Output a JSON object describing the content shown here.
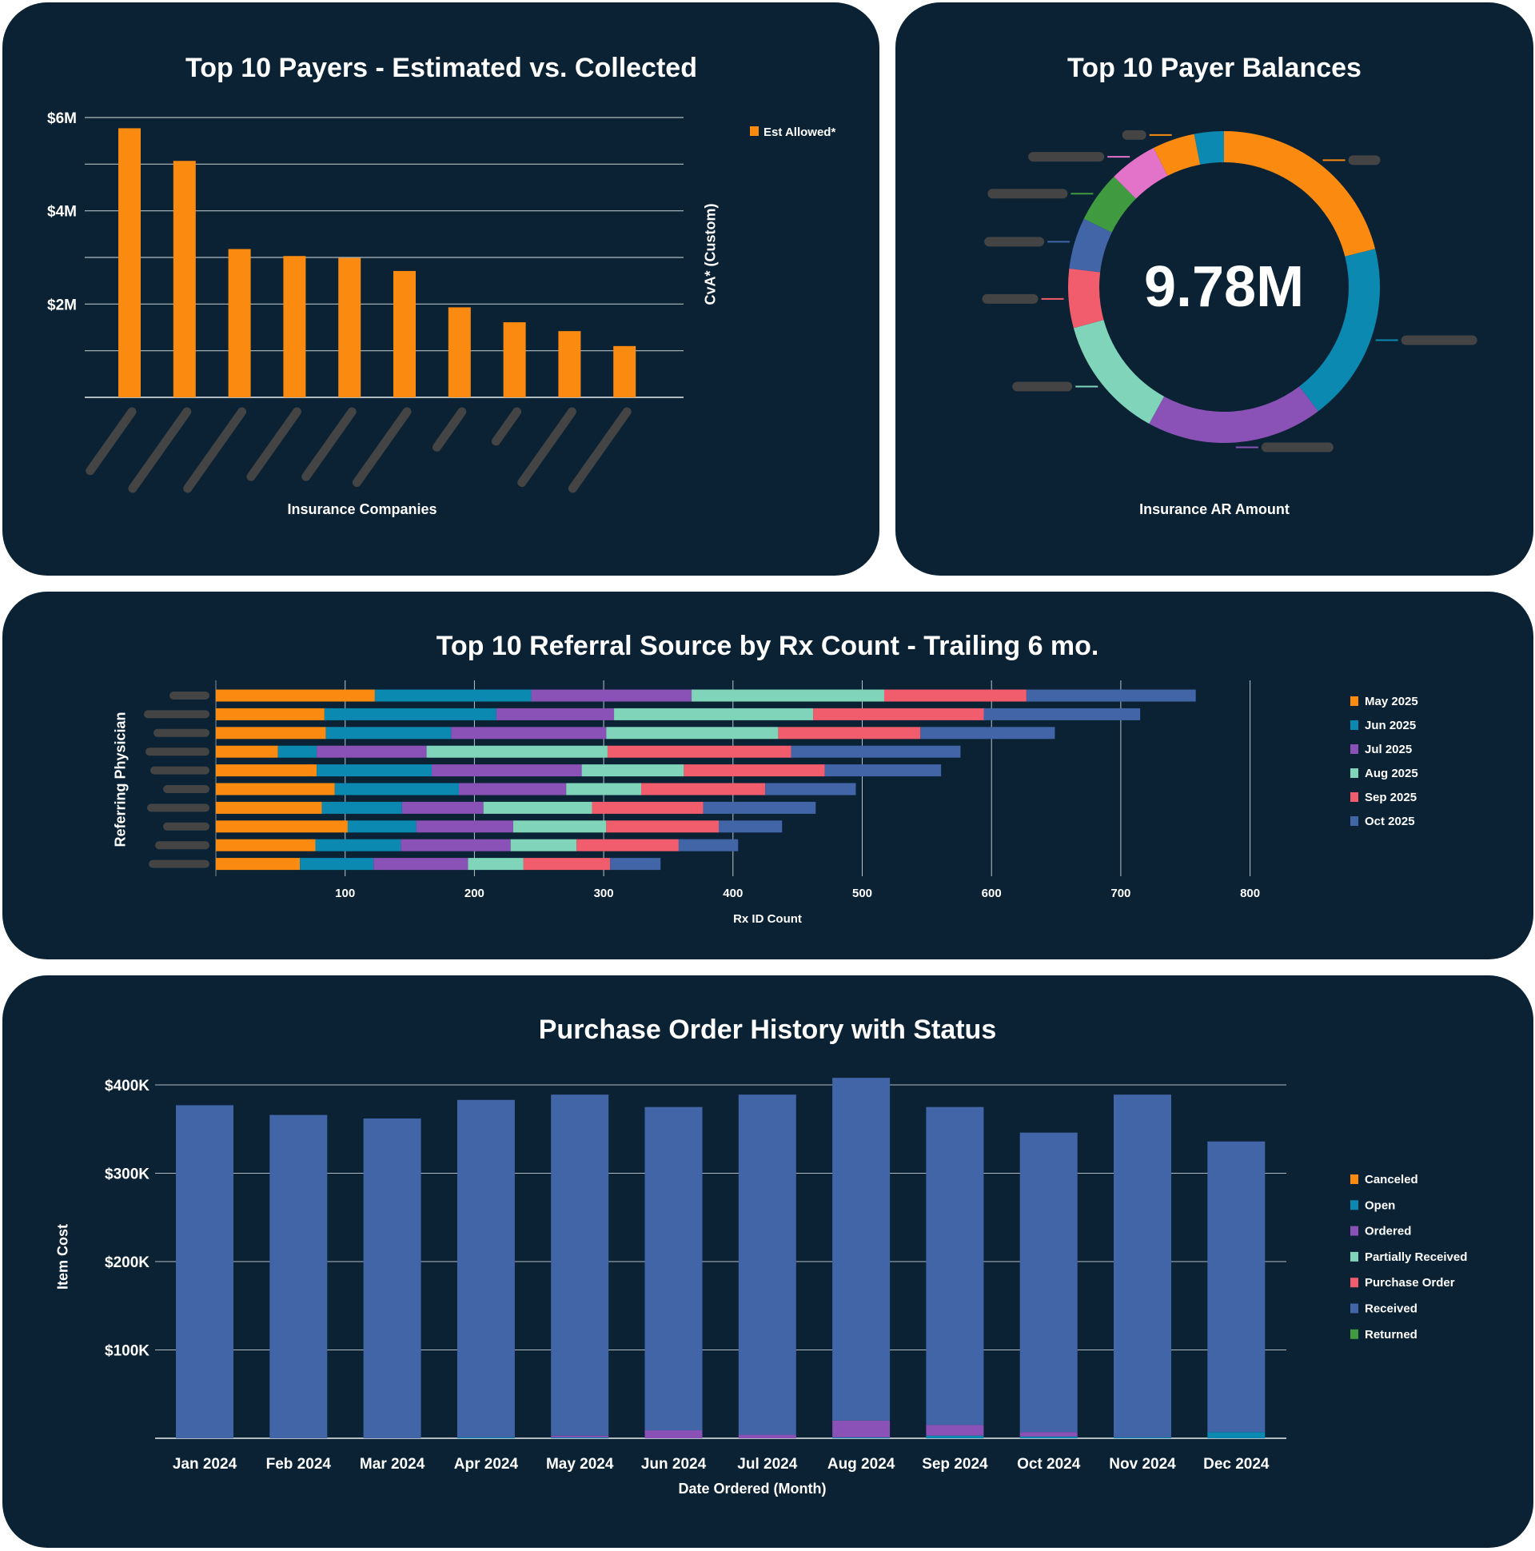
{
  "colors": {
    "card_bg": "#0a2233",
    "orange": "#fb8a10",
    "teal": "#0b89b0",
    "purple": "#8a52b6",
    "mint": "#7fd4b9",
    "red": "#f25d6d",
    "blue": "#4265a8",
    "green": "#3f9a40",
    "pink": "#e273c9",
    "redacted": "#444444",
    "grid": "#cfd6dc"
  },
  "payers": {
    "title": "Top 10 Payers - Estimated vs. Collected",
    "xlabel": "Insurance Companies",
    "ylabel_right": "CvA* (Custom)"
  },
  "balances": {
    "title": "Top 10 Payer Balances",
    "total": "9.78M",
    "footer_label": "Insurance AR Amount"
  },
  "referral": {
    "title": "Top 10 Referral Source by Rx Count - Trailing 6 mo.",
    "xlabel": "Rx ID Count",
    "ylabel": "Referring Physician"
  },
  "po": {
    "title": "Purchase Order History with Status",
    "xlabel": "Date Ordered (Month)",
    "ylabel": "Item Cost"
  },
  "chart_data": [
    {
      "type": "bar",
      "title": "Top 10 Payers - Estimated vs. Collected",
      "xlabel": "Insurance Companies",
      "ylabel": "CvA* (Custom)",
      "categories_redacted": true,
      "legend": [
        "Est Allowed*"
      ],
      "legend_position": "top-right",
      "yticks": [
        "$6M",
        "$4M",
        "$2M"
      ],
      "ylim": [
        0,
        6
      ],
      "unit": "millions USD",
      "grid": true,
      "values": [
        5.77,
        5.07,
        3.18,
        3.03,
        2.99,
        2.71,
        1.93,
        1.61,
        1.42,
        1.1
      ]
    },
    {
      "type": "pie",
      "donut": true,
      "title": "Top 10 Payer Balances",
      "center_label": "9.78M",
      "label": "Insurance AR Amount",
      "categories_redacted": true,
      "unit": "millions USD",
      "slices": [
        {
          "value": 2.06,
          "color": "orange"
        },
        {
          "value": 1.82,
          "color": "teal"
        },
        {
          "value": 1.79,
          "color": "purple"
        },
        {
          "value": 1.25,
          "color": "mint"
        },
        {
          "value": 0.6,
          "color": "red"
        },
        {
          "value": 0.52,
          "color": "blue"
        },
        {
          "value": 0.52,
          "color": "green"
        },
        {
          "value": 0.49,
          "color": "pink"
        },
        {
          "value": 0.43,
          "color": "orange"
        },
        {
          "value": 0.3,
          "color": "teal"
        }
      ]
    },
    {
      "type": "bar",
      "orientation": "horizontal",
      "stacked": true,
      "title": "Top 10 Referral Source by Rx Count - Trailing 6 mo.",
      "xlabel": "Rx ID Count",
      "ylabel": "Referring Physician",
      "categories_redacted": true,
      "xticks": [
        "100",
        "200",
        "300",
        "400",
        "500",
        "600",
        "700",
        "800"
      ],
      "xlim": [
        0,
        800
      ],
      "grid": true,
      "legend_position": "right",
      "series": [
        {
          "name": "May 2025",
          "color": "orange",
          "values": [
            123,
            84,
            85,
            48,
            78,
            92,
            82,
            102,
            77,
            65
          ]
        },
        {
          "name": "Jun 2025",
          "color": "teal",
          "values": [
            121,
            133,
            97,
            30,
            89,
            96,
            62,
            53,
            66,
            57
          ]
        },
        {
          "name": "Jul 2025",
          "color": "purple",
          "values": [
            124,
            91,
            120,
            85,
            116,
            83,
            63,
            75,
            85,
            73
          ]
        },
        {
          "name": "Aug 2025",
          "color": "mint",
          "values": [
            149,
            154,
            133,
            140,
            79,
            58,
            84,
            72,
            51,
            43
          ]
        },
        {
          "name": "Sep 2025",
          "color": "red",
          "values": [
            110,
            132,
            110,
            142,
            109,
            96,
            86,
            87,
            79,
            67
          ]
        },
        {
          "name": "Oct 2025",
          "color": "blue",
          "values": [
            131,
            121,
            104,
            131,
            90,
            70,
            87,
            49,
            46,
            39
          ]
        }
      ]
    },
    {
      "type": "bar",
      "stacked": true,
      "title": "Purchase Order History with Status",
      "xlabel": "Date Ordered (Month)",
      "ylabel": "Item Cost",
      "categories": [
        "Jan 2024",
        "Feb 2024",
        "Mar 2024",
        "Apr 2024",
        "May 2024",
        "Jun 2024",
        "Jul 2024",
        "Aug 2024",
        "Sep 2024",
        "Oct 2024",
        "Nov 2024",
        "Dec 2024"
      ],
      "yticks": [
        "$400K",
        "$300K",
        "$200K",
        "$100K"
      ],
      "ylim": [
        0,
        400
      ],
      "unit": "thousands USD",
      "grid": true,
      "legend_position": "right",
      "series": [
        {
          "name": "Canceled",
          "color": "orange",
          "values": [
            0,
            0,
            0,
            0,
            0,
            0,
            0,
            0,
            0,
            0,
            0,
            0
          ]
        },
        {
          "name": "Open",
          "color": "teal",
          "values": [
            0,
            0,
            0,
            1,
            1,
            0,
            0,
            1,
            3,
            2,
            1,
            7
          ]
        },
        {
          "name": "Ordered",
          "color": "purple",
          "values": [
            0,
            0,
            0,
            0,
            2,
            9,
            4,
            19,
            12,
            5,
            0,
            0
          ]
        },
        {
          "name": "Partially Received",
          "color": "mint",
          "values": [
            0,
            0,
            0,
            0,
            0,
            0,
            0,
            0,
            0,
            0,
            0,
            0
          ]
        },
        {
          "name": "Purchase Order",
          "color": "red",
          "values": [
            0,
            0,
            0,
            0,
            0,
            0,
            0,
            0,
            0,
            0,
            0,
            0
          ]
        },
        {
          "name": "Received",
          "color": "blue",
          "values": [
            377,
            366,
            362,
            382,
            386,
            366,
            385,
            388,
            360,
            339,
            388,
            329
          ]
        },
        {
          "name": "Returned",
          "color": "green",
          "values": [
            0,
            0,
            0,
            0,
            0,
            0,
            0,
            0,
            0,
            0,
            0,
            0
          ]
        }
      ]
    }
  ]
}
